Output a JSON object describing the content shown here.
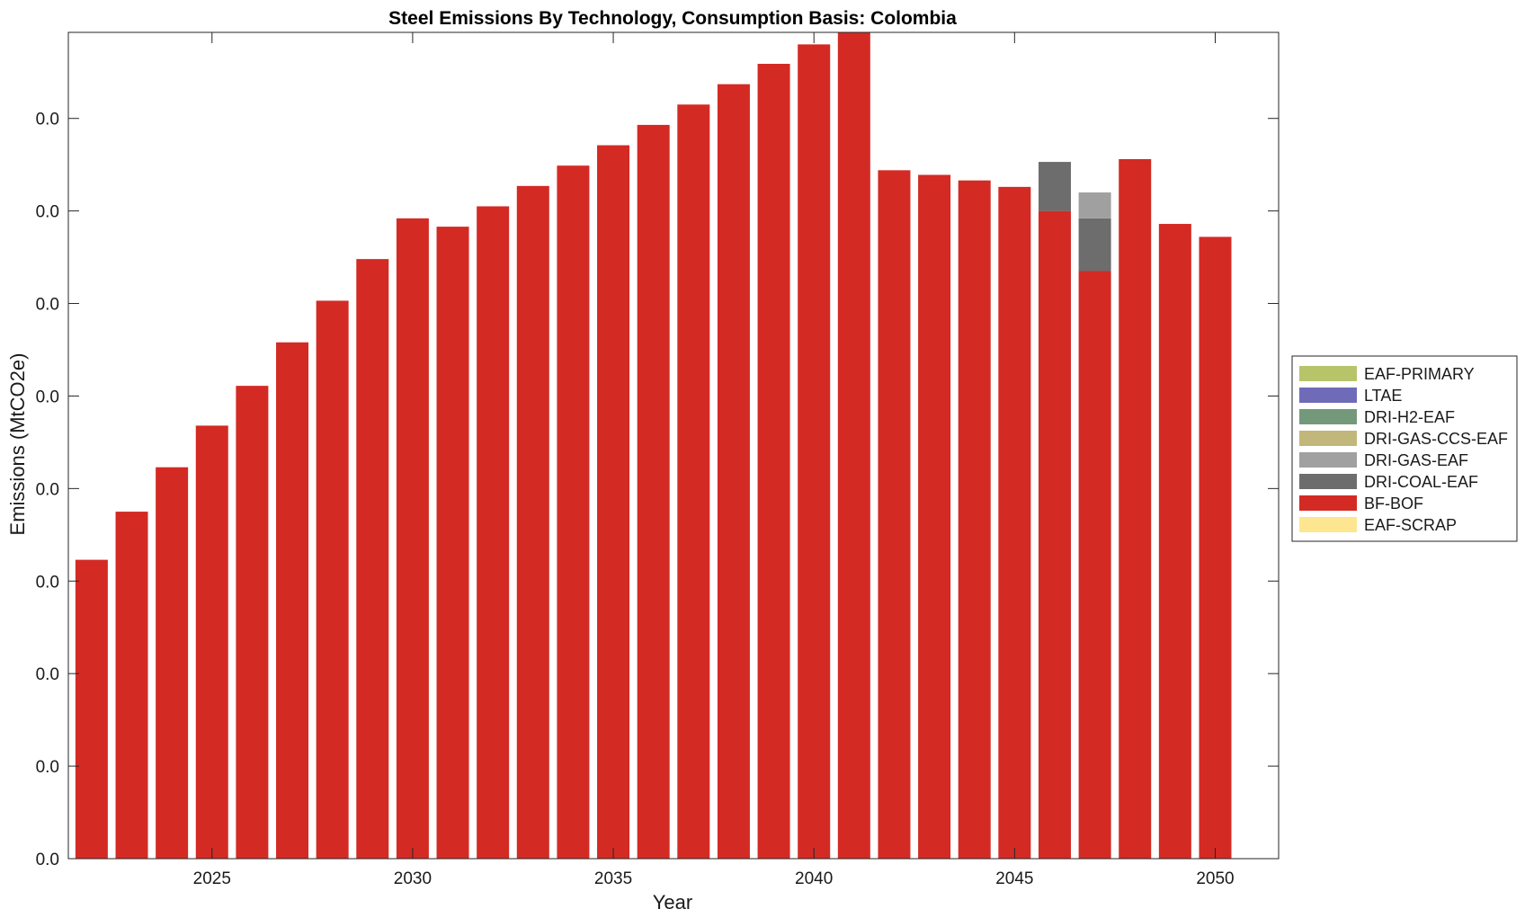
{
  "chart_data": {
    "type": "bar",
    "stacked": true,
    "title": "Steel Emissions By Technology, Consumption Basis: Colombia",
    "xlabel": "Year",
    "ylabel": "Emissions (MtCO2e)",
    "x": [
      2022,
      2023,
      2024,
      2025,
      2026,
      2027,
      2028,
      2029,
      2030,
      2031,
      2032,
      2033,
      2034,
      2035,
      2036,
      2037,
      2038,
      2039,
      2040,
      2041,
      2042,
      2043,
      2044,
      2045,
      2046,
      2047,
      2048,
      2049,
      2050
    ],
    "xticks": [
      2025,
      2030,
      2035,
      2040,
      2045,
      2050
    ],
    "xtick_labels": [
      "2025",
      "2030",
      "2035",
      "2040",
      "2045",
      "2050"
    ],
    "ylim": [
      0,
      0.0893
    ],
    "yticks": [
      0,
      0.01,
      0.02,
      0.03,
      0.04,
      0.05,
      0.06,
      0.07,
      0.08
    ],
    "ytick_labels": [
      "0.0",
      "0.0",
      "0.0",
      "0.0",
      "0.0",
      "0.0",
      "0.0",
      "0.0",
      "0.0"
    ],
    "legend_position": "outside-right",
    "series": [
      {
        "name": "EAF-SCRAP",
        "color": "#fde68f",
        "values": [
          0,
          0,
          0,
          0,
          0,
          0,
          0,
          0,
          0,
          0,
          0,
          0,
          0,
          0,
          0,
          0,
          0,
          0,
          0,
          0,
          0,
          0,
          0,
          0,
          0,
          0,
          0,
          0,
          0
        ]
      },
      {
        "name": "BF-BOF",
        "color": "#d42a24",
        "values": [
          0.0323,
          0.0375,
          0.0423,
          0.0468,
          0.0511,
          0.0558,
          0.0603,
          0.0648,
          0.0692,
          0.0683,
          0.0705,
          0.0727,
          0.0749,
          0.0771,
          0.0793,
          0.0815,
          0.0837,
          0.0859,
          0.088,
          0.0893,
          0.0744,
          0.0739,
          0.0733,
          0.0726,
          0.07,
          0.0635,
          0.0756,
          0.0686,
          0.0672
        ]
      },
      {
        "name": "DRI-COAL-EAF",
        "color": "#6d6d6d",
        "values": [
          0,
          0,
          0,
          0,
          0,
          0,
          0,
          0,
          0,
          0,
          0,
          0,
          0,
          0,
          0,
          0,
          0,
          0,
          0,
          0,
          0,
          0,
          0,
          0,
          0.0053,
          0.0057,
          0,
          0,
          0
        ]
      },
      {
        "name": "DRI-GAS-EAF",
        "color": "#a0a0a0",
        "values": [
          0,
          0,
          0,
          0,
          0,
          0,
          0,
          0,
          0,
          0,
          0,
          0,
          0,
          0,
          0,
          0,
          0,
          0,
          0,
          0,
          0,
          0,
          0,
          0,
          0,
          0.0028,
          0,
          0,
          0
        ]
      },
      {
        "name": "DRI-GAS-CCS-EAF",
        "color": "#c2b77a",
        "values": [
          0,
          0,
          0,
          0,
          0,
          0,
          0,
          0,
          0,
          0,
          0,
          0,
          0,
          0,
          0,
          0,
          0,
          0,
          0,
          0,
          0,
          0,
          0,
          0,
          0,
          0,
          0,
          0,
          0
        ]
      },
      {
        "name": "DRI-H2-EAF",
        "color": "#74997a",
        "values": [
          0,
          0,
          0,
          0,
          0,
          0,
          0,
          0,
          0,
          0,
          0,
          0,
          0,
          0,
          0,
          0,
          0,
          0,
          0,
          0,
          0,
          0,
          0,
          0,
          0,
          0,
          0,
          0,
          0
        ]
      },
      {
        "name": "LTAE",
        "color": "#6f6bb8",
        "values": [
          0,
          0,
          0,
          0,
          0,
          0,
          0,
          0,
          0,
          0,
          0,
          0,
          0,
          0,
          0,
          0,
          0,
          0,
          0,
          0,
          0,
          0,
          0,
          0,
          0,
          0,
          0,
          0,
          0
        ]
      },
      {
        "name": "EAF-PRIMARY",
        "color": "#b8c46a",
        "values": [
          0,
          0,
          0,
          0,
          0,
          0,
          0,
          0,
          0,
          0,
          0,
          0,
          0,
          0,
          0,
          0,
          0,
          0,
          0,
          0,
          0,
          0,
          0,
          0,
          0,
          0,
          0,
          0,
          0
        ]
      }
    ],
    "legend_order": [
      "EAF-PRIMARY",
      "LTAE",
      "DRI-H2-EAF",
      "DRI-GAS-CCS-EAF",
      "DRI-GAS-EAF",
      "DRI-COAL-EAF",
      "BF-BOF",
      "EAF-SCRAP"
    ]
  }
}
